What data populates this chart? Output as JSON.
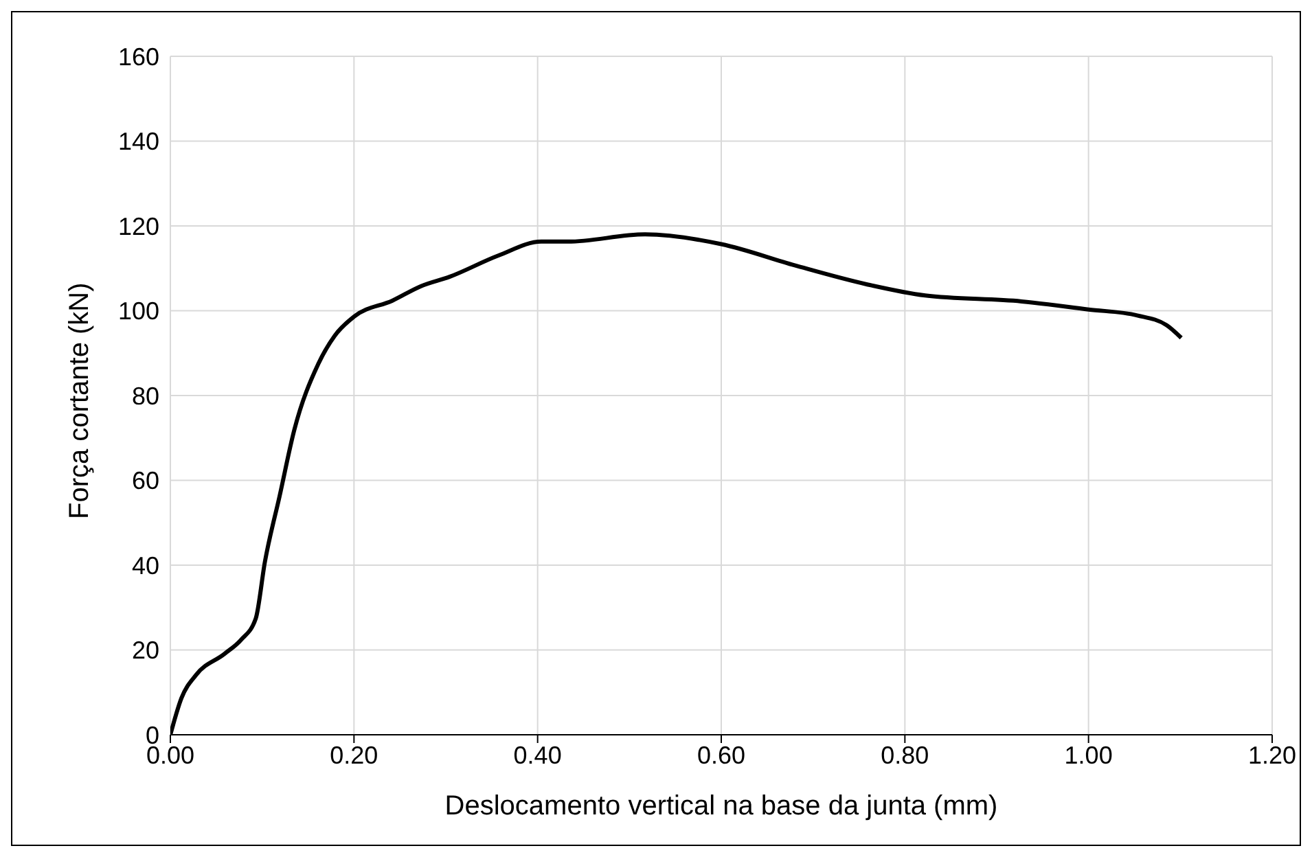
{
  "chart_data": {
    "type": "line",
    "xlabel": "Deslocamento vertical na base da junta (mm)",
    "ylabel": "Força cortante (kN)",
    "x": [
      0,
      0.012,
      0.028,
      0.059,
      0.077,
      0.093,
      0.103,
      0.119,
      0.135,
      0.161,
      0.179,
      0.2,
      0.242,
      0.273,
      0.304,
      0.357,
      0.404,
      0.433,
      0.517,
      0.6,
      0.68,
      0.759,
      0.822,
      0.927,
      1.0,
      1.053,
      1.085,
      1.101
    ],
    "series": [
      {
        "color": "#000000",
        "values": [
          0,
          8.6,
          14.1,
          19.1,
          22.4,
          27.4,
          40.8,
          56.3,
          71.9,
          87.4,
          94.1,
          98.6,
          102.4,
          105.8,
          108,
          113,
          116.3,
          116.3,
          118,
          115.7,
          110.7,
          106.2,
          103.6,
          102.2,
          100.3,
          98.9,
          96.6,
          93.6
        ]
      }
    ],
    "xlim": [
      0,
      1.2
    ],
    "xticks": [
      {
        "value": 0,
        "label": "0.00"
      },
      {
        "value": 0.2,
        "label": "0.20"
      },
      {
        "value": 0.4,
        "label": "0.40"
      },
      {
        "value": 0.6,
        "label": "0.60"
      },
      {
        "value": 0.8,
        "label": "0.80"
      },
      {
        "value": 1,
        "label": "1.00"
      },
      {
        "value": 1.2,
        "label": "1.20"
      }
    ],
    "ylim": [
      0,
      160
    ],
    "yticks": [
      0,
      20,
      40,
      60,
      80,
      100,
      120,
      140,
      160
    ],
    "grid": true,
    "legend": false,
    "marker": "none",
    "line_style": "solid"
  }
}
